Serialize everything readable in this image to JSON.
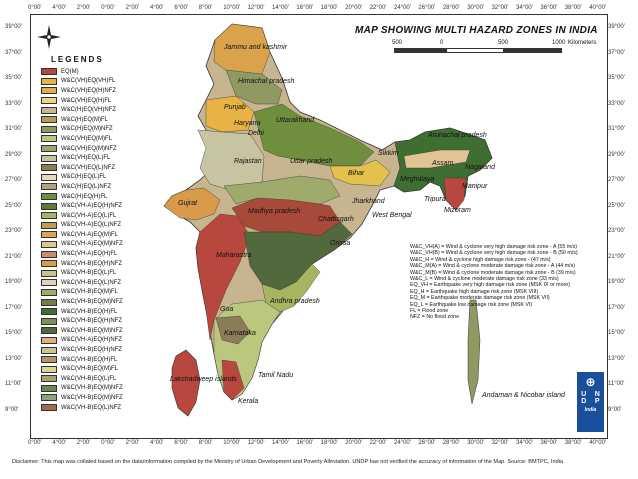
{
  "title": "MAP SHOWING MULTI HAZARD ZONES IN INDIA",
  "scale_bar": {
    "ticks": [
      "500",
      "0",
      "500",
      "1000"
    ],
    "unit": "Kilometers"
  },
  "compass": {
    "labels": [
      "N",
      "S",
      "E",
      "W"
    ]
  },
  "longitude_labels": [
    "0°00'",
    "4°00'",
    "2°00'",
    "0°00'",
    "2°00'",
    "4°00'",
    "6°00'",
    "8°00'",
    "10°00'",
    "12°00'",
    "14°00'",
    "16°00'",
    "18°00'",
    "20°00'",
    "22°00'",
    "24°00'",
    "26°00'",
    "28°00'",
    "30°00'",
    "32°00'",
    "34°00'",
    "36°00'",
    "38°00'",
    "40°00'"
  ],
  "latitude_labels": [
    "39°00'",
    "37°00'",
    "35°00'",
    "33°00'",
    "31°00'",
    "29°00'",
    "27°00'",
    "25°00'",
    "23°00'",
    "21°00'",
    "19°00'",
    "17°00'",
    "15°00'",
    "13°00'",
    "11°00'",
    "9°00'"
  ],
  "legend": {
    "heading": "LEGENDS",
    "items": [
      {
        "label": "EQ(M)",
        "color": "#b8483e"
      },
      {
        "label": "W&C(VH)EQ(VH)FL",
        "color": "#e9b341"
      },
      {
        "label": "W&C(VH)EQ(H)NFZ",
        "color": "#dcb14b"
      },
      {
        "label": "W&C(VH)EQ(H)FL",
        "color": "#f0d188"
      },
      {
        "label": "W&C(H)EQ(VH)NFZ",
        "color": "#c6b58e"
      },
      {
        "label": "W&C(H)EQ(M)FL",
        "color": "#b89a54"
      },
      {
        "label": "W&C(H)EQ(M)NFZ",
        "color": "#8f9a62"
      },
      {
        "label": "W&C(VH)EQ(M)FL",
        "color": "#bcc77e"
      },
      {
        "label": "W&C(VH)EQ(M)NFZ",
        "color": "#97a86a"
      },
      {
        "label": "W&C(VH)EQ(L)FL",
        "color": "#c7c4a2"
      },
      {
        "label": "W&C(VH)EQ(L)NFZ",
        "color": "#8b7c5a"
      },
      {
        "label": "W&C(H)EQ(L)FL",
        "color": "#e8d9b4"
      },
      {
        "label": "W&C(H)EQ(L)NFZ",
        "color": "#b5a07d"
      },
      {
        "label": "W&C(H)EQ(H)FL",
        "color": "#6f8f3f"
      },
      {
        "label": "W&C(VH-A)EQ(H)NFZ",
        "color": "#5d7a37"
      },
      {
        "label": "W&C(VH-A)EQ(L)FL",
        "color": "#a7b560"
      },
      {
        "label": "W&C(VH-A)EQ(L)NFZ",
        "color": "#bda04c"
      },
      {
        "label": "W&C(VH-A)EQ(M)FL",
        "color": "#d8a35c"
      },
      {
        "label": "W&C(VH-A)EQ(M)NFZ",
        "color": "#e1c494"
      },
      {
        "label": "W&C(VH-A)EQ(H)FL",
        "color": "#c98b6f"
      },
      {
        "label": "W&C(VH-B)EQ(H)NFZ",
        "color": "#d99b4a"
      },
      {
        "label": "W&C(VH-B)EQ(L)FL",
        "color": "#c7c28b"
      },
      {
        "label": "W&C(VH-B)EQ(L)NFZ",
        "color": "#d8d5b6"
      },
      {
        "label": "W&C(VH-B)EQ(M)FL",
        "color": "#9eab6b"
      },
      {
        "label": "W&C(VH-B)EQ(M)NFZ",
        "color": "#6f7f45"
      },
      {
        "label": "W&C(VH-B)EQ(H)FL",
        "color": "#3f6e32"
      },
      {
        "label": "W&C(VH-B)EQ(H)NFZ",
        "color": "#7e8d59"
      },
      {
        "label": "W&C(VH-B)EQ(M)NFZ",
        "color": "#52683d"
      },
      {
        "label": "W&C(VH-A)EQ(H)NFZ",
        "color": "#e0b07c"
      },
      {
        "label": "W&C(VH-B)EQ(H)NFZ",
        "color": "#d2c291"
      },
      {
        "label": "W&C(VH-B)EQ(H)FL",
        "color": "#b59669"
      },
      {
        "label": "W&C(VH-B)EQ(M)FL",
        "color": "#e4d38a"
      },
      {
        "label": "W&C(VH-B)EQ(L)FL",
        "color": "#a9a16e"
      },
      {
        "label": "W&C(VH-B)EQ(M)NFZ",
        "color": "#6b8650"
      },
      {
        "label": "W&C(VH-B)EQ(M)NFZ",
        "color": "#8fa476"
      },
      {
        "label": "W&C(VH-B)EQ(L)NFZ",
        "color": "#a26b4c"
      }
    ]
  },
  "zone_labels": [
    "W&C_VH(A) = Wind & cyclone very high damage risk zone - A (55 m/s)",
    "W&C_VH(B) = Wind & cyclone very high damage risk zone - B (50 m/s)",
    "W&C_H = Wind & cyclone high damage risk zone - (47 m/s)",
    "W&C_M(A) = Wind & cyclone moderate damage risk zone - A (44 m/s)",
    "W&C_M(B) = Wind & cyclone moderate damage risk zone - B (39 m/s)",
    "W&C_L = Wind & cyclone moderate damage risk zone (33 m/s)",
    "EQ_VH = Earthquake very high damage risk zone (MSK IX or more)",
    "EQ_H = Earthquake high damage risk zone (MSK VIII)",
    "EQ_M = Earthquake moderate damage risk zone (MSK VII)",
    "EQ_L = Earthquake low damage risk zone (MSK VI)",
    "FL = Flood zone",
    "NFZ = No flood zone"
  ],
  "places": [
    {
      "name": "Jammu and kashmir",
      "bold": false
    },
    {
      "name": "Himachal pradesh",
      "bold": false
    },
    {
      "name": "Punjab",
      "bold": false
    },
    {
      "name": "Haryana",
      "bold": false
    },
    {
      "name": "Delhi",
      "bold": false
    },
    {
      "name": "Uttarakhand",
      "bold": false
    },
    {
      "name": "Rajastan",
      "bold": false
    },
    {
      "name": "Uttar pradesh",
      "bold": false
    },
    {
      "name": "Sikkim",
      "bold": false
    },
    {
      "name": "Arunachal pradesh",
      "bold": false
    },
    {
      "name": "Assam",
      "bold": false
    },
    {
      "name": "Nagaland",
      "bold": false
    },
    {
      "name": "Bihar",
      "bold": false
    },
    {
      "name": "Meghalaya",
      "bold": false
    },
    {
      "name": "Manipur",
      "bold": false
    },
    {
      "name": "Gujrat",
      "bold": false
    },
    {
      "name": "Madhya pradesh",
      "bold": false
    },
    {
      "name": "Jharkhand",
      "bold": false
    },
    {
      "name": "Tripura",
      "bold": false
    },
    {
      "name": "Mizoram",
      "bold": false
    },
    {
      "name": "West Bengal",
      "bold": false
    },
    {
      "name": "Chattisgarh",
      "bold": false
    },
    {
      "name": "Orissa",
      "bold": false
    },
    {
      "name": "Maharastra",
      "bold": false
    },
    {
      "name": "Andhra pradesh",
      "bold": false
    },
    {
      "name": "Goa",
      "bold": false
    },
    {
      "name": "Karnataka",
      "bold": false
    },
    {
      "name": "Tamil Nadu",
      "bold": false
    },
    {
      "name": "Lakshadweep islands",
      "bold": false
    },
    {
      "name": "Kerala",
      "bold": false
    },
    {
      "name": "Andaman & Nicobar island",
      "bold": false
    }
  ],
  "undp": {
    "letters": [
      "U",
      "N",
      "D",
      "P"
    ],
    "caption": "India"
  },
  "disclaimer": "Disclaimer: This map was collated based on the data/information compiled by the Ministry of Urban Development and Poverty Alleviation. UNDP has not verified the accuracy of information of the Map.   Source: BMTPC, India",
  "colors": {
    "frame": "#333333",
    "sea": "#ffffff",
    "undp_blue": "#1a4f9c",
    "zone_red": "#b8483e",
    "zone_green_dark": "#3f6e32",
    "zone_olive": "#8f9a62",
    "zone_tan": "#c6b58e",
    "zone_orange": "#d99b4a"
  }
}
